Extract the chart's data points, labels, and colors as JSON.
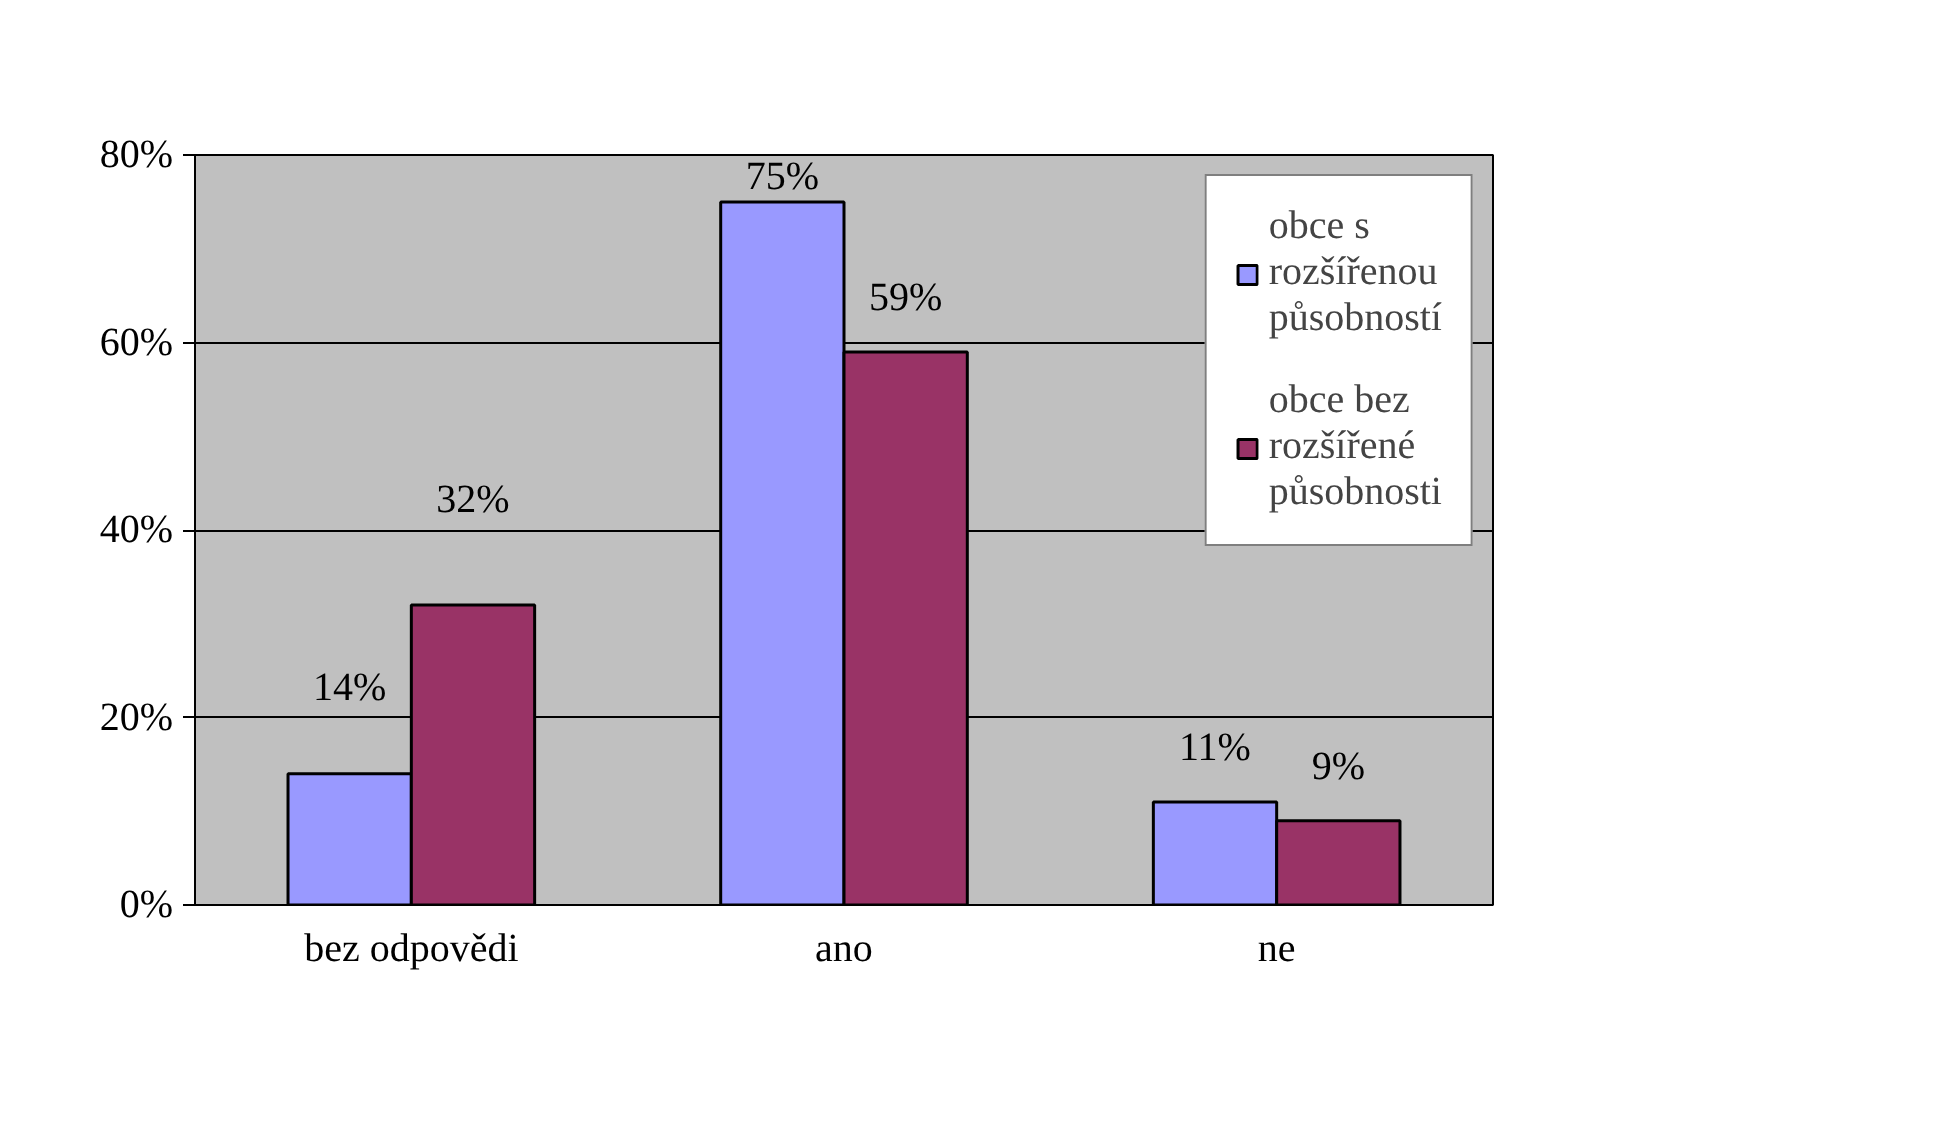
{
  "chart_data": {
    "type": "bar",
    "categories": [
      "bez odpovědi",
      "ano",
      "ne"
    ],
    "series": [
      {
        "name": "obce s rozšířenou působností",
        "color": "#9999ff",
        "values": [
          14,
          75,
          11
        ],
        "value_labels": [
          "14%",
          "75%",
          "11%"
        ]
      },
      {
        "name": "obce bez rozšířené působnosti",
        "color": "#993366",
        "values": [
          32,
          59,
          9
        ],
        "value_labels": [
          "32%",
          "59%",
          "9%"
        ]
      }
    ],
    "ylim": [
      0,
      80
    ],
    "yticks": [
      {
        "value": 0,
        "label": "0%"
      },
      {
        "value": 20,
        "label": "20%"
      },
      {
        "value": 40,
        "label": "40%"
      },
      {
        "value": 60,
        "label": "60%"
      },
      {
        "value": 80,
        "label": "80%"
      }
    ],
    "grid": "y",
    "legend": "top right"
  }
}
